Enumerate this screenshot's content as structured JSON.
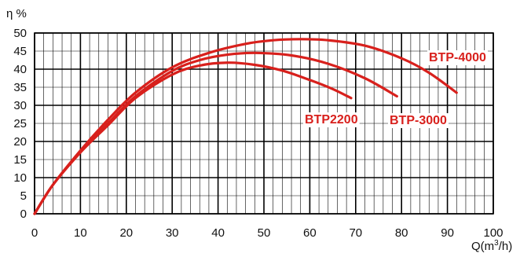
{
  "chart_data": {
    "type": "line",
    "ylabel": "η %",
    "xlabel": "Q(m³/h)",
    "xlim": [
      0,
      100
    ],
    "ylim": [
      0,
      50
    ],
    "x_ticks": [
      "0",
      "10",
      "20",
      "30",
      "40",
      "50",
      "60",
      "70",
      "80",
      "90",
      "100"
    ],
    "y_ticks": [
      "0",
      "5",
      "10",
      "15",
      "20",
      "25",
      "30",
      "35",
      "40",
      "45",
      "50"
    ],
    "grid": true,
    "line_color": "#d8201c",
    "series": [
      {
        "name": "BTP2200",
        "x": [
          0,
          4,
          10,
          16,
          22,
          30,
          36,
          42,
          48,
          54,
          60,
          65,
          69
        ],
        "y": [
          0,
          8,
          17,
          24.5,
          32,
          38.5,
          41,
          41.8,
          41.2,
          39.6,
          37,
          34.5,
          32
        ]
      },
      {
        "name": "BTP-3000",
        "x": [
          0,
          4,
          10,
          16,
          22,
          30,
          36,
          42,
          48,
          56,
          64,
          72,
          79
        ],
        "y": [
          0,
          8,
          17,
          25,
          32.5,
          39.5,
          42.5,
          44,
          44.5,
          43.8,
          41.5,
          37.5,
          32.5
        ]
      },
      {
        "name": "BTP-4000",
        "x": [
          0,
          4,
          10,
          16,
          22,
          30,
          38,
          46,
          52,
          58,
          64,
          72,
          80,
          86,
          92
        ],
        "y": [
          0,
          8,
          17.5,
          26,
          33.5,
          40.5,
          44.5,
          47,
          48,
          48.3,
          48,
          46.5,
          43,
          39,
          33.5
        ]
      }
    ]
  }
}
